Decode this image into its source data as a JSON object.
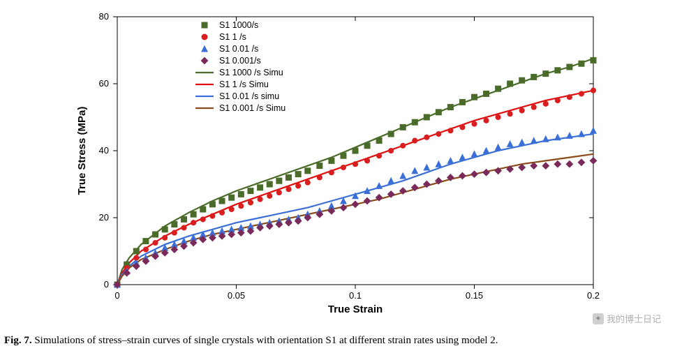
{
  "chart": {
    "type": "line+scatter",
    "background_color": "#ffffff",
    "plot_border_color": "#000000",
    "x": {
      "label": "True Strain",
      "lim": [
        0,
        0.2
      ],
      "ticks": [
        0,
        0.05,
        0.1,
        0.15,
        0.2
      ],
      "tick_fontsize": 13,
      "label_fontsize": 15,
      "label_fontweight": "bold"
    },
    "y": {
      "label": "True Stress (MPa)",
      "lim": [
        0,
        80
      ],
      "ticks": [
        0,
        20,
        40,
        60,
        80
      ],
      "tick_fontsize": 13,
      "label_fontsize": 15,
      "label_fontweight": "bold"
    },
    "legend": {
      "position": "upper-left-inside",
      "fontsize": 12.5,
      "items": [
        {
          "key": "s1_1000_pts",
          "label": "S1 1000/s",
          "kind": "marker",
          "marker": "square",
          "color": "#4a6b2a"
        },
        {
          "key": "s1_1_pts",
          "label": "S1 1 /s",
          "kind": "marker",
          "marker": "circle",
          "color": "#d81e1e"
        },
        {
          "key": "s1_001_pts",
          "label": "S1 0.01 /s",
          "kind": "marker",
          "marker": "triangle",
          "color": "#3a6fd8"
        },
        {
          "key": "s1_0001_pts",
          "label": "S1 0.001/s",
          "kind": "marker",
          "marker": "diamond",
          "color": "#7a2a5a"
        },
        {
          "key": "s1_1000_line",
          "label": "S1 1000 /s Simu",
          "kind": "line",
          "color": "#4a6b2a"
        },
        {
          "key": "s1_1_line",
          "label": "S1 1 /s Simu",
          "kind": "line",
          "color": "#e01010"
        },
        {
          "key": "s1_001_line",
          "label": "S1 0.01 /s simu",
          "kind": "line",
          "color": "#3a6fd8"
        },
        {
          "key": "s1_0001_line",
          "label": "S1 0.001 /s Simu",
          "kind": "line",
          "color": "#8a4a1a"
        }
      ]
    },
    "line_width": 2.2,
    "marker_size": 5,
    "series_lines": {
      "s1_1000_line": {
        "color": "#4a6b2a",
        "xy": [
          [
            0.0,
            0.0
          ],
          [
            0.002,
            4.5
          ],
          [
            0.005,
            8.0
          ],
          [
            0.01,
            12.0
          ],
          [
            0.02,
            17.5
          ],
          [
            0.03,
            21.5
          ],
          [
            0.04,
            25.0
          ],
          [
            0.05,
            28.0
          ],
          [
            0.06,
            30.5
          ],
          [
            0.07,
            33.0
          ],
          [
            0.08,
            35.5
          ],
          [
            0.09,
            38.0
          ],
          [
            0.1,
            41.0
          ],
          [
            0.11,
            44.0
          ],
          [
            0.12,
            47.0
          ],
          [
            0.13,
            50.0
          ],
          [
            0.14,
            53.0
          ],
          [
            0.15,
            55.5
          ],
          [
            0.16,
            58.0
          ],
          [
            0.17,
            60.5
          ],
          [
            0.18,
            63.0
          ],
          [
            0.19,
            65.0
          ],
          [
            0.2,
            67.5
          ]
        ]
      },
      "s1_1_line": {
        "color": "#e01010",
        "xy": [
          [
            0.0,
            0.0
          ],
          [
            0.002,
            3.5
          ],
          [
            0.005,
            6.5
          ],
          [
            0.01,
            10.0
          ],
          [
            0.02,
            14.5
          ],
          [
            0.03,
            18.0
          ],
          [
            0.04,
            21.0
          ],
          [
            0.05,
            24.0
          ],
          [
            0.06,
            26.5
          ],
          [
            0.07,
            29.0
          ],
          [
            0.08,
            31.5
          ],
          [
            0.09,
            34.0
          ],
          [
            0.1,
            36.5
          ],
          [
            0.11,
            39.0
          ],
          [
            0.12,
            41.5
          ],
          [
            0.13,
            44.0
          ],
          [
            0.14,
            46.5
          ],
          [
            0.15,
            49.0
          ],
          [
            0.16,
            51.0
          ],
          [
            0.17,
            53.0
          ],
          [
            0.18,
            55.0
          ],
          [
            0.19,
            56.5
          ],
          [
            0.2,
            58.0
          ]
        ]
      },
      "s1_001_line": {
        "color": "#3a6fd8",
        "xy": [
          [
            0.0,
            0.0
          ],
          [
            0.002,
            3.0
          ],
          [
            0.005,
            5.5
          ],
          [
            0.01,
            8.5
          ],
          [
            0.02,
            12.0
          ],
          [
            0.03,
            14.5
          ],
          [
            0.04,
            16.5
          ],
          [
            0.05,
            18.5
          ],
          [
            0.06,
            20.0
          ],
          [
            0.07,
            21.5
          ],
          [
            0.08,
            23.0
          ],
          [
            0.09,
            25.0
          ],
          [
            0.1,
            27.0
          ],
          [
            0.11,
            29.0
          ],
          [
            0.12,
            31.0
          ],
          [
            0.13,
            33.5
          ],
          [
            0.14,
            36.0
          ],
          [
            0.15,
            38.0
          ],
          [
            0.16,
            40.0
          ],
          [
            0.17,
            41.5
          ],
          [
            0.18,
            43.0
          ],
          [
            0.19,
            44.0
          ],
          [
            0.2,
            45.0
          ]
        ]
      },
      "s1_0001_line": {
        "color": "#8a4a1a",
        "xy": [
          [
            0.0,
            0.0
          ],
          [
            0.002,
            2.5
          ],
          [
            0.005,
            5.0
          ],
          [
            0.01,
            7.5
          ],
          [
            0.02,
            10.5
          ],
          [
            0.03,
            13.0
          ],
          [
            0.04,
            15.0
          ],
          [
            0.05,
            16.5
          ],
          [
            0.06,
            18.0
          ],
          [
            0.07,
            19.5
          ],
          [
            0.08,
            21.0
          ],
          [
            0.09,
            22.5
          ],
          [
            0.1,
            24.0
          ],
          [
            0.11,
            25.5
          ],
          [
            0.12,
            27.5
          ],
          [
            0.13,
            29.5
          ],
          [
            0.14,
            31.5
          ],
          [
            0.15,
            33.0
          ],
          [
            0.16,
            34.5
          ],
          [
            0.17,
            36.0
          ],
          [
            0.18,
            37.0
          ],
          [
            0.19,
            38.0
          ],
          [
            0.2,
            39.0
          ]
        ]
      }
    },
    "series_points": {
      "s1_1000_pts": {
        "marker": "square",
        "color": "#4a6b2a",
        "size": 5,
        "xy": [
          [
            0.0,
            0.0
          ],
          [
            0.004,
            6.0
          ],
          [
            0.008,
            10.0
          ],
          [
            0.012,
            13.0
          ],
          [
            0.016,
            15.0
          ],
          [
            0.02,
            16.5
          ],
          [
            0.024,
            18.0
          ],
          [
            0.028,
            19.5
          ],
          [
            0.032,
            21.0
          ],
          [
            0.036,
            22.5
          ],
          [
            0.04,
            24.0
          ],
          [
            0.044,
            25.0
          ],
          [
            0.048,
            26.0
          ],
          [
            0.052,
            27.0
          ],
          [
            0.056,
            28.0
          ],
          [
            0.06,
            29.0
          ],
          [
            0.064,
            30.0
          ],
          [
            0.068,
            31.0
          ],
          [
            0.072,
            32.0
          ],
          [
            0.076,
            33.0
          ],
          [
            0.08,
            34.0
          ],
          [
            0.085,
            35.5
          ],
          [
            0.09,
            37.0
          ],
          [
            0.095,
            38.5
          ],
          [
            0.1,
            40.0
          ],
          [
            0.105,
            41.5
          ],
          [
            0.11,
            43.0
          ],
          [
            0.115,
            45.0
          ],
          [
            0.12,
            47.0
          ],
          [
            0.125,
            48.5
          ],
          [
            0.13,
            50.0
          ],
          [
            0.135,
            51.5
          ],
          [
            0.14,
            53.0
          ],
          [
            0.145,
            54.5
          ],
          [
            0.15,
            56.0
          ],
          [
            0.155,
            57.0
          ],
          [
            0.16,
            58.5
          ],
          [
            0.165,
            60.0
          ],
          [
            0.17,
            61.0
          ],
          [
            0.175,
            62.0
          ],
          [
            0.18,
            63.0
          ],
          [
            0.185,
            64.0
          ],
          [
            0.19,
            65.0
          ],
          [
            0.195,
            66.0
          ],
          [
            0.2,
            67.0
          ]
        ]
      },
      "s1_1_pts": {
        "marker": "circle",
        "color": "#d81e1e",
        "size": 4.5,
        "xy": [
          [
            0.0,
            0.0
          ],
          [
            0.004,
            5.0
          ],
          [
            0.008,
            8.0
          ],
          [
            0.012,
            10.5
          ],
          [
            0.016,
            12.5
          ],
          [
            0.02,
            14.0
          ],
          [
            0.024,
            15.5
          ],
          [
            0.028,
            17.0
          ],
          [
            0.032,
            18.5
          ],
          [
            0.036,
            19.5
          ],
          [
            0.04,
            20.5
          ],
          [
            0.044,
            21.5
          ],
          [
            0.048,
            22.5
          ],
          [
            0.052,
            23.5
          ],
          [
            0.056,
            24.5
          ],
          [
            0.06,
            25.5
          ],
          [
            0.064,
            26.5
          ],
          [
            0.068,
            27.5
          ],
          [
            0.072,
            28.5
          ],
          [
            0.076,
            29.5
          ],
          [
            0.08,
            30.5
          ],
          [
            0.085,
            32.0
          ],
          [
            0.09,
            33.5
          ],
          [
            0.095,
            35.0
          ],
          [
            0.1,
            36.0
          ],
          [
            0.105,
            37.0
          ],
          [
            0.11,
            38.5
          ],
          [
            0.115,
            40.0
          ],
          [
            0.12,
            41.5
          ],
          [
            0.125,
            43.0
          ],
          [
            0.13,
            44.0
          ],
          [
            0.135,
            45.0
          ],
          [
            0.14,
            46.0
          ],
          [
            0.145,
            47.0
          ],
          [
            0.15,
            48.0
          ],
          [
            0.155,
            49.0
          ],
          [
            0.16,
            50.0
          ],
          [
            0.165,
            51.0
          ],
          [
            0.17,
            52.0
          ],
          [
            0.175,
            53.0
          ],
          [
            0.18,
            54.0
          ],
          [
            0.185,
            55.0
          ],
          [
            0.19,
            56.0
          ],
          [
            0.195,
            57.0
          ],
          [
            0.2,
            58.0
          ]
        ]
      },
      "s1_001_pts": {
        "marker": "triangle",
        "color": "#3a6fd8",
        "size": 5,
        "xy": [
          [
            0.0,
            0.0
          ],
          [
            0.004,
            4.0
          ],
          [
            0.008,
            6.5
          ],
          [
            0.012,
            8.0
          ],
          [
            0.016,
            9.5
          ],
          [
            0.02,
            11.0
          ],
          [
            0.024,
            12.0
          ],
          [
            0.028,
            13.0
          ],
          [
            0.032,
            14.0
          ],
          [
            0.036,
            15.0
          ],
          [
            0.04,
            15.5
          ],
          [
            0.044,
            16.0
          ],
          [
            0.048,
            16.5
          ],
          [
            0.052,
            17.0
          ],
          [
            0.056,
            17.5
          ],
          [
            0.06,
            18.0
          ],
          [
            0.064,
            18.5
          ],
          [
            0.068,
            19.0
          ],
          [
            0.072,
            19.5
          ],
          [
            0.076,
            20.0
          ],
          [
            0.08,
            21.0
          ],
          [
            0.085,
            22.0
          ],
          [
            0.09,
            23.5
          ],
          [
            0.095,
            25.0
          ],
          [
            0.1,
            26.5
          ],
          [
            0.105,
            28.0
          ],
          [
            0.11,
            29.5
          ],
          [
            0.115,
            31.0
          ],
          [
            0.12,
            32.5
          ],
          [
            0.125,
            34.0
          ],
          [
            0.13,
            35.0
          ],
          [
            0.135,
            36.0
          ],
          [
            0.14,
            37.0
          ],
          [
            0.145,
            38.0
          ],
          [
            0.15,
            39.0
          ],
          [
            0.155,
            40.0
          ],
          [
            0.16,
            41.0
          ],
          [
            0.165,
            42.0
          ],
          [
            0.17,
            42.5
          ],
          [
            0.175,
            43.0
          ],
          [
            0.18,
            43.5
          ],
          [
            0.185,
            44.0
          ],
          [
            0.19,
            44.5
          ],
          [
            0.195,
            45.0
          ],
          [
            0.2,
            46.0
          ]
        ]
      },
      "s1_0001_pts": {
        "marker": "diamond",
        "color": "#7a2a5a",
        "size": 5,
        "xy": [
          [
            0.0,
            0.0
          ],
          [
            0.004,
            3.5
          ],
          [
            0.008,
            5.5
          ],
          [
            0.012,
            7.0
          ],
          [
            0.016,
            8.5
          ],
          [
            0.02,
            9.5
          ],
          [
            0.024,
            10.5
          ],
          [
            0.028,
            11.5
          ],
          [
            0.032,
            12.5
          ],
          [
            0.036,
            13.5
          ],
          [
            0.04,
            14.0
          ],
          [
            0.044,
            14.5
          ],
          [
            0.048,
            15.0
          ],
          [
            0.052,
            15.5
          ],
          [
            0.056,
            16.0
          ],
          [
            0.06,
            17.0
          ],
          [
            0.064,
            17.5
          ],
          [
            0.068,
            18.0
          ],
          [
            0.072,
            18.5
          ],
          [
            0.076,
            19.0
          ],
          [
            0.08,
            20.0
          ],
          [
            0.085,
            21.0
          ],
          [
            0.09,
            22.0
          ],
          [
            0.095,
            23.0
          ],
          [
            0.1,
            24.0
          ],
          [
            0.105,
            25.0
          ],
          [
            0.11,
            26.0
          ],
          [
            0.115,
            27.0
          ],
          [
            0.12,
            28.0
          ],
          [
            0.125,
            29.0
          ],
          [
            0.13,
            30.0
          ],
          [
            0.135,
            31.0
          ],
          [
            0.14,
            32.0
          ],
          [
            0.145,
            32.5
          ],
          [
            0.15,
            33.0
          ],
          [
            0.155,
            33.5
          ],
          [
            0.16,
            34.0
          ],
          [
            0.165,
            34.5
          ],
          [
            0.17,
            35.0
          ],
          [
            0.175,
            35.5
          ],
          [
            0.18,
            35.5
          ],
          [
            0.185,
            36.0
          ],
          [
            0.19,
            36.0
          ],
          [
            0.195,
            36.5
          ],
          [
            0.2,
            37.0
          ]
        ]
      }
    }
  },
  "caption": {
    "label": "Fig. 7.",
    "text": "Simulations of stress–strain curves of single crystals with orientation S1 at different strain rates using model 2.",
    "fontsize": 15
  },
  "watermark": "我的博士日记"
}
